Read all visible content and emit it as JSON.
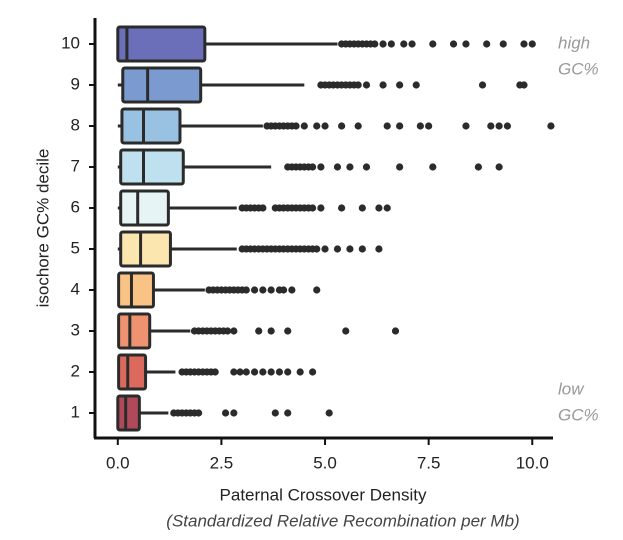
{
  "chart_data": {
    "type": "boxplot",
    "orientation": "horizontal",
    "x_label": "Paternal Crossover Density",
    "x_sublabel": "(Standardized Relative Recombination per Mb)",
    "y_label": "isochore GC% decile",
    "annotation_high": [
      "high",
      "GC%"
    ],
    "annotation_low": [
      "low",
      "GC%"
    ],
    "categories": [
      "1",
      "2",
      "3",
      "4",
      "5",
      "6",
      "7",
      "8",
      "9",
      "10"
    ],
    "colors": [
      "#b04a5a",
      "#dc6a5c",
      "#ef9270",
      "#f9c385",
      "#fbe6b0",
      "#e6f4f6",
      "#bfe0ef",
      "#98c1e2",
      "#7b9bd0",
      "#6b6fb9"
    ],
    "xlim": [
      -0.55,
      10.5
    ],
    "xticks": [
      {
        "value": 0,
        "label": "0.0"
      },
      2.5,
      {
        "value": 5,
        "label": "5.0"
      },
      7.5,
      {
        "value": 10,
        "label": "10.0"
      }
    ],
    "boxes": [
      {
        "whislo": 0,
        "q1": 0,
        "med": 0.19,
        "q3": 0.52,
        "whishi": 1.22,
        "fliers": [
          1.35,
          1.45,
          1.55,
          1.65,
          1.75,
          1.85,
          1.95,
          2.6,
          2.8,
          3.8,
          4.1,
          5.1
        ]
      },
      {
        "whislo": 0,
        "q1": 0.02,
        "med": 0.24,
        "q3": 0.67,
        "whishi": 1.39,
        "fliers": [
          1.55,
          1.65,
          1.75,
          1.85,
          1.95,
          2.05,
          2.15,
          2.25,
          2.35,
          2.8,
          2.95,
          3.1,
          3.3,
          3.5,
          3.7,
          3.9,
          4.1,
          4.4,
          4.7
        ]
      },
      {
        "whislo": 0,
        "q1": 0.02,
        "med": 0.29,
        "q3": 0.77,
        "whishi": 1.75,
        "fliers": [
          1.85,
          1.95,
          2.05,
          2.15,
          2.25,
          2.35,
          2.45,
          2.55,
          2.65,
          2.8,
          3.4,
          3.7,
          4.1,
          5.5,
          6.7
        ]
      },
      {
        "whislo": 0,
        "q1": 0.02,
        "med": 0.33,
        "q3": 0.86,
        "whishi": 2.1,
        "fliers": [
          2.2,
          2.3,
          2.4,
          2.5,
          2.6,
          2.7,
          2.8,
          2.9,
          3.0,
          3.1,
          3.3,
          3.5,
          3.7,
          3.9,
          4.0,
          4.2,
          4.8
        ]
      },
      {
        "whislo": 0,
        "q1": 0.07,
        "med": 0.55,
        "q3": 1.27,
        "whishi": 2.87,
        "fliers": [
          3.0,
          3.1,
          3.2,
          3.3,
          3.4,
          3.5,
          3.6,
          3.7,
          3.8,
          3.9,
          4.0,
          4.1,
          4.2,
          4.3,
          4.4,
          4.5,
          4.6,
          4.7,
          4.8,
          5.0,
          5.3,
          5.6,
          5.9,
          6.3
        ]
      },
      {
        "whislo": 0,
        "q1": 0.07,
        "med": 0.48,
        "q3": 1.22,
        "whishi": 2.87,
        "fliers": [
          3.0,
          3.1,
          3.2,
          3.3,
          3.4,
          3.5,
          3.8,
          3.9,
          4.0,
          4.1,
          4.2,
          4.3,
          4.4,
          4.5,
          4.6,
          4.7,
          4.9,
          5.4,
          5.9,
          6.3,
          6.5
        ]
      },
      {
        "whislo": 0,
        "q1": 0.07,
        "med": 0.62,
        "q3": 1.58,
        "whishi": 3.7,
        "fliers": [
          4.1,
          4.2,
          4.3,
          4.4,
          4.5,
          4.6,
          4.7,
          4.9,
          5.3,
          5.6,
          6.0,
          6.8,
          7.6,
          8.7,
          9.2
        ]
      },
      {
        "whislo": 0,
        "q1": 0.1,
        "med": 0.62,
        "q3": 1.5,
        "whishi": 3.5,
        "fliers": [
          3.6,
          3.7,
          3.8,
          3.9,
          4.0,
          4.1,
          4.2,
          4.3,
          4.5,
          4.8,
          5.0,
          5.4,
          5.8,
          6.5,
          6.8,
          7.3,
          7.5,
          8.4,
          9.0,
          9.2,
          9.4,
          10.45
        ]
      },
      {
        "whislo": 0,
        "q1": 0.12,
        "med": 0.72,
        "q3": 2.0,
        "whishi": 4.5,
        "fliers": [
          4.9,
          5.0,
          5.1,
          5.2,
          5.3,
          5.4,
          5.5,
          5.6,
          5.7,
          5.8,
          6.0,
          6.4,
          6.8,
          7.2,
          8.8,
          9.7,
          9.8
        ]
      },
      {
        "whislo": 0,
        "q1": 0,
        "med": 0.22,
        "q3": 2.1,
        "whishi": 5.3,
        "fliers": [
          5.4,
          5.5,
          5.6,
          5.7,
          5.8,
          5.9,
          6.0,
          6.1,
          6.2,
          6.4,
          6.6,
          6.9,
          7.1,
          7.6,
          8.1,
          8.4,
          8.9,
          9.3,
          9.8,
          10.0
        ]
      }
    ]
  }
}
